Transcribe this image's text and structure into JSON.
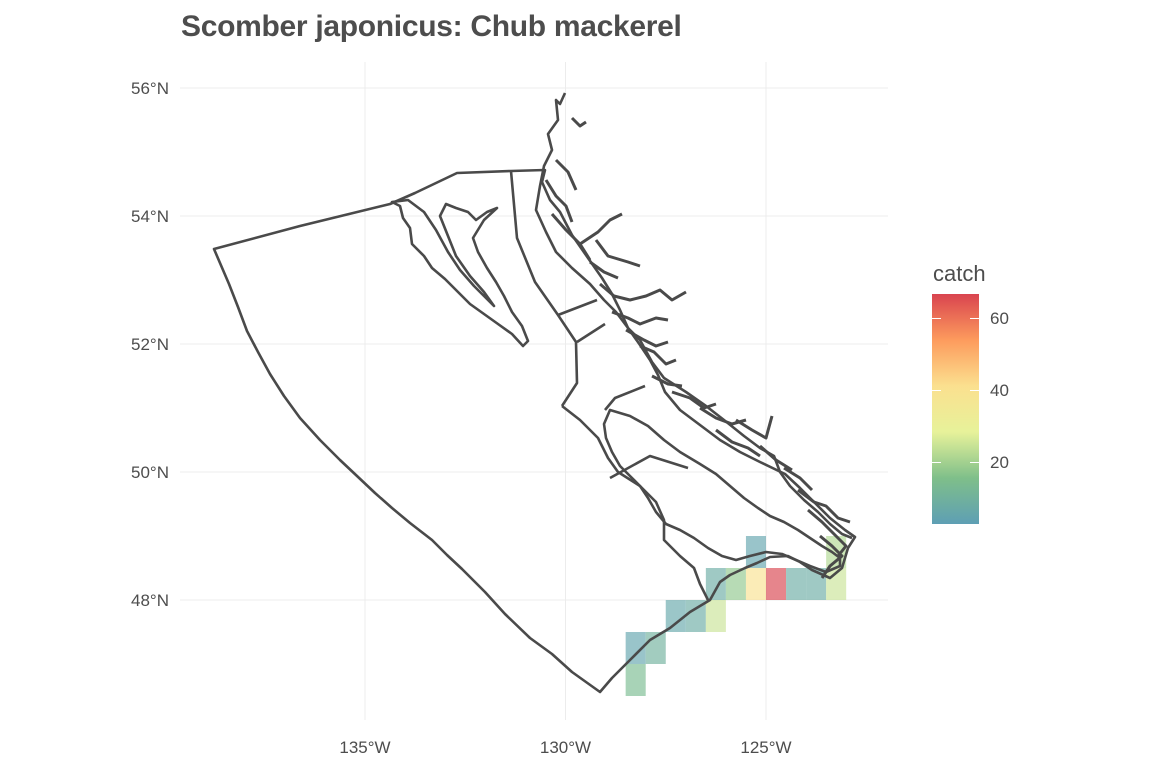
{
  "title": "Scomber japonicus: Chub mackerel",
  "axes": {
    "x_ticks": [
      "135°W",
      "130°W",
      "125°W"
    ],
    "y_ticks": [
      "56°N",
      "54°N",
      "52°N",
      "50°N",
      "48°N"
    ]
  },
  "legend": {
    "title": "catch",
    "labels": [
      "60",
      "40",
      "20"
    ],
    "colors": [
      "#5e9fb4",
      "#7fbf8a",
      "#e7f29a",
      "#fbe08f",
      "#fd9b5d",
      "#d9444f"
    ]
  },
  "chart_data": {
    "type": "heatmap",
    "title": "Scomber japonicus: Chub mackerel",
    "xlabel": "",
    "ylabel": "",
    "xlim": [
      -140,
      -122
    ],
    "ylim": [
      46.5,
      56.5
    ],
    "x_ticks": [
      -135,
      -130,
      -125
    ],
    "y_ticks": [
      56,
      54,
      52,
      50,
      48
    ],
    "value_label": "catch",
    "value_range": [
      3,
      67
    ],
    "cell_size_deg": 0.5,
    "cells": [
      {
        "lon": -125.25,
        "lat": 48.75,
        "catch": 5
      },
      {
        "lon": -126.25,
        "lat": 48.25,
        "catch": 8
      },
      {
        "lon": -125.75,
        "lat": 48.25,
        "catch": 18
      },
      {
        "lon": -125.25,
        "lat": 48.25,
        "catch": 40
      },
      {
        "lon": -124.75,
        "lat": 48.25,
        "catch": 67
      },
      {
        "lon": -124.25,
        "lat": 48.25,
        "catch": 8
      },
      {
        "lon": -123.75,
        "lat": 48.25,
        "catch": 8
      },
      {
        "lon": -123.25,
        "lat": 48.25,
        "catch": 25
      },
      {
        "lon": -123.25,
        "lat": 48.75,
        "catch": 22
      },
      {
        "lon": -127.25,
        "lat": 47.75,
        "catch": 6
      },
      {
        "lon": -126.75,
        "lat": 47.75,
        "catch": 8
      },
      {
        "lon": -126.25,
        "lat": 47.75,
        "catch": 25
      },
      {
        "lon": -128.25,
        "lat": 47.25,
        "catch": 5
      },
      {
        "lon": -127.75,
        "lat": 47.25,
        "catch": 10
      },
      {
        "lon": -128.25,
        "lat": 46.75,
        "catch": 14
      }
    ]
  }
}
